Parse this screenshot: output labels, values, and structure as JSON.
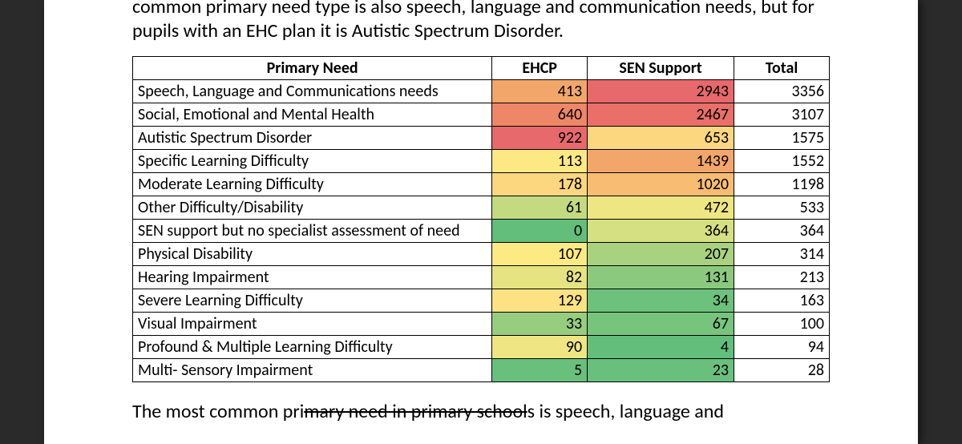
{
  "paragraph_top": "common primary need type is also speech, language and communication needs, but for pupils with an EHC plan it is Autistic Spectrum Disorder.",
  "paragraph_bottom_pre": "The most common pri",
  "paragraph_bottom_struck": "mary need in primary school",
  "paragraph_bottom_post": "s is speech, language and",
  "table": {
    "headers": {
      "need": "Primary Need",
      "ehcp": "EHCP",
      "sen": "SEN Support",
      "total": "Total"
    },
    "rows": [
      {
        "need": "Speech, Language and Communications needs",
        "ehcp": "413",
        "ehcp_bg": "#f3a66a",
        "sen": "2943",
        "sen_bg": "#e8696b",
        "total": "3356"
      },
      {
        "need": "Social, Emotional and Mental Health",
        "ehcp": "640",
        "ehcp_bg": "#ee8668",
        "sen": "2467",
        "sen_bg": "#ea6f69",
        "total": "3107"
      },
      {
        "need": "Autistic Spectrum Disorder",
        "ehcp": "922",
        "ehcp_bg": "#e8696b",
        "sen": "653",
        "sen_bg": "#fdd680",
        "total": "1575"
      },
      {
        "need": "Specific Learning Difficulty",
        "ehcp": "113",
        "ehcp_bg": "#fde984",
        "sen": "1439",
        "sen_bg": "#f3a66a",
        "total": "1552"
      },
      {
        "need": "Moderate Learning Difficulty",
        "ehcp": "178",
        "ehcp_bg": "#fdd680",
        "sen": "1020",
        "sen_bg": "#f8bd72",
        "total": "1198"
      },
      {
        "need": "Other Difficulty/Disability",
        "ehcp": "61",
        "ehcp_bg": "#c4da81",
        "sen": "472",
        "sen_bg": "#eee683",
        "total": "533"
      },
      {
        "need": "SEN support but no specialist assessment of need",
        "ehcp": "0",
        "ehcp_bg": "#63be7b",
        "sen": "364",
        "sen_bg": "#d4e082",
        "total": "364"
      },
      {
        "need": "Physical Disability",
        "ehcp": "107",
        "ehcp_bg": "#feea83",
        "sen": "207",
        "sen_bg": "#a8d280",
        "total": "314"
      },
      {
        "need": "Hearing Impairment",
        "ehcp": "82",
        "ehcp_bg": "#e6e482",
        "sen": "131",
        "sen_bg": "#8bc97e",
        "total": "213"
      },
      {
        "need": "Severe Learning Difficulty",
        "ehcp": "129",
        "ehcp_bg": "#fde283",
        "sen": "34",
        "sen_bg": "#6cc17c",
        "total": "163"
      },
      {
        "need": "Visual Impairment",
        "ehcp": "33",
        "ehcp_bg": "#97cd7e",
        "sen": "67",
        "sen_bg": "#77c47d",
        "total": "100"
      },
      {
        "need": "Profound & Multiple Learning Difficulty",
        "ehcp": "90",
        "ehcp_bg": "#efe683",
        "sen": "4",
        "sen_bg": "#63be7b",
        "total": "94"
      },
      {
        "need": "Multi- Sensory Impairment",
        "ehcp": "5",
        "ehcp_bg": "#69c07c",
        "sen": "23",
        "sen_bg": "#68c07c",
        "total": "28"
      }
    ]
  }
}
